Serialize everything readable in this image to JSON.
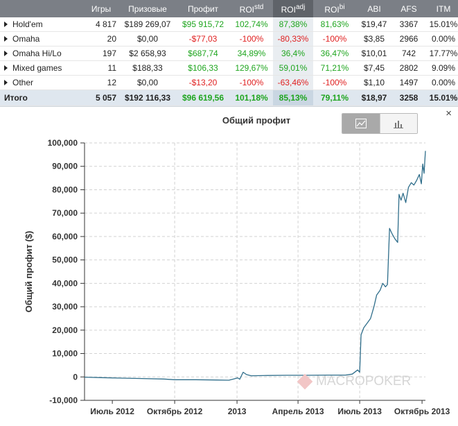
{
  "table": {
    "headers": [
      {
        "text": "",
        "sup": ""
      },
      {
        "text": "Игры",
        "sup": ""
      },
      {
        "text": "Призовые",
        "sup": ""
      },
      {
        "text": "Профит",
        "sup": ""
      },
      {
        "text": "ROI",
        "sup": "std"
      },
      {
        "text": "ROI",
        "sup": "adj"
      },
      {
        "text": "ROI",
        "sup": "bi"
      },
      {
        "text": "ABI",
        "sup": ""
      },
      {
        "text": "AFS",
        "sup": ""
      },
      {
        "text": "ITM",
        "sup": ""
      }
    ],
    "rows": [
      {
        "name": "Hold'em",
        "games": "4 817",
        "prize": "$189 269,07",
        "profit": "$95 915,72",
        "roi_std": "102,74%",
        "roi_adj": "87,38%",
        "roi_bi": "81,63%",
        "abi": "$19,47",
        "afs": "3367",
        "itm": "15.01%",
        "c": [
          "pos",
          "pos",
          "pos",
          "pos"
        ]
      },
      {
        "name": "Omaha",
        "games": "20",
        "prize": "$0,00",
        "profit": "-$77,03",
        "roi_std": "-100%",
        "roi_adj": "-80,33%",
        "roi_bi": "-100%",
        "abi": "$3,85",
        "afs": "2966",
        "itm": "0.00%",
        "c": [
          "neg",
          "neg",
          "neg",
          "neg"
        ]
      },
      {
        "name": "Omaha Hi/Lo",
        "games": "197",
        "prize": "$2 658,93",
        "profit": "$687,74",
        "roi_std": "34,89%",
        "roi_adj": "36,4%",
        "roi_bi": "36,47%",
        "abi": "$10,01",
        "afs": "742",
        "itm": "17.77%",
        "c": [
          "pos",
          "pos",
          "pos",
          "pos"
        ]
      },
      {
        "name": "Mixed games",
        "games": "11",
        "prize": "$188,33",
        "profit": "$106,33",
        "roi_std": "129,67%",
        "roi_adj": "59,01%",
        "roi_bi": "71,21%",
        "abi": "$7,45",
        "afs": "2802",
        "itm": "9.09%",
        "c": [
          "pos",
          "pos",
          "pos",
          "pos"
        ]
      },
      {
        "name": "Other",
        "games": "12",
        "prize": "$0,00",
        "profit": "-$13,20",
        "roi_std": "-100%",
        "roi_adj": "-63,46%",
        "roi_bi": "-100%",
        "abi": "$1,10",
        "afs": "1497",
        "itm": "0.00%",
        "c": [
          "neg",
          "neg",
          "neg",
          "neg"
        ]
      }
    ],
    "total": {
      "name": "Итого",
      "games": "5 057",
      "prize": "$192 116,33",
      "profit": "$96 619,56",
      "roi_std": "101,18%",
      "roi_adj": "85,13%",
      "roi_bi": "79,11%",
      "abi": "$18,97",
      "afs": "3258",
      "itm": "15.01%"
    }
  },
  "chart_panel": {
    "close_label": "×",
    "line_button_icon": "line-chart-icon",
    "bar_button_icon": "bar-chart-icon",
    "watermark": "MACROPOKER"
  },
  "colors": {
    "line": "#2e6d8a",
    "grid": "#d2d2d2",
    "positive": "#1ea51e",
    "negative": "#e02020"
  },
  "chart_data": {
    "type": "line",
    "title": "Общий профит",
    "xlabel": "",
    "ylabel": "Общий профит ($)",
    "ylim": [
      -10000,
      100000
    ],
    "yticks": [
      -10000,
      0,
      10000,
      20000,
      30000,
      40000,
      50000,
      60000,
      70000,
      80000,
      90000,
      100000
    ],
    "ytick_labels": [
      "-10,000",
      "0",
      "10,000",
      "20,000",
      "30,000",
      "40,000",
      "50,000",
      "60,000",
      "70,000",
      "80,000",
      "90,000",
      "100,000"
    ],
    "x_axis_type": "datetime",
    "xlim": [
      "2012-05-21",
      "2013-10-06"
    ],
    "xticks": [
      {
        "date": "2012-07-01",
        "label": "Июль 2012",
        "grid": false
      },
      {
        "date": "2012-10-01",
        "label": "Октябрь 2012",
        "grid": true
      },
      {
        "date": "2013-01-01",
        "label": "2013",
        "grid": true
      },
      {
        "date": "2013-04-01",
        "label": "Апрель 2013",
        "grid": true
      },
      {
        "date": "2013-07-01",
        "label": "Июль 2013",
        "grid": true
      },
      {
        "date": "2013-10-01",
        "label": "Октябрь 2013",
        "grid": false
      }
    ],
    "grid": true,
    "series": [
      {
        "points": [
          {
            "x": "2012-05-21",
            "y": -100
          },
          {
            "x": "2012-06-15",
            "y": -300
          },
          {
            "x": "2012-07-15",
            "y": -500
          },
          {
            "x": "2012-08-15",
            "y": -700
          },
          {
            "x": "2012-09-15",
            "y": -900
          },
          {
            "x": "2012-10-01",
            "y": -1200
          },
          {
            "x": "2012-11-01",
            "y": -1200
          },
          {
            "x": "2012-12-01",
            "y": -1300
          },
          {
            "x": "2012-12-20",
            "y": -1400
          },
          {
            "x": "2012-12-28",
            "y": -800
          },
          {
            "x": "2013-01-02",
            "y": -400
          },
          {
            "x": "2013-01-05",
            "y": -1000
          },
          {
            "x": "2013-01-10",
            "y": 2000
          },
          {
            "x": "2013-01-15",
            "y": 1000
          },
          {
            "x": "2013-01-22",
            "y": 500
          },
          {
            "x": "2013-02-15",
            "y": 600
          },
          {
            "x": "2013-03-15",
            "y": 700
          },
          {
            "x": "2013-04-15",
            "y": 700
          },
          {
            "x": "2013-05-15",
            "y": 800
          },
          {
            "x": "2013-06-10",
            "y": 800
          },
          {
            "x": "2013-06-20",
            "y": 1200
          },
          {
            "x": "2013-06-28",
            "y": 3000
          },
          {
            "x": "2013-07-01",
            "y": 2000
          },
          {
            "x": "2013-07-03",
            "y": 18000
          },
          {
            "x": "2013-07-07",
            "y": 21000
          },
          {
            "x": "2013-07-12",
            "y": 23000
          },
          {
            "x": "2013-07-17",
            "y": 25000
          },
          {
            "x": "2013-07-22",
            "y": 30000
          },
          {
            "x": "2013-07-26",
            "y": 35000
          },
          {
            "x": "2013-07-31",
            "y": 37000
          },
          {
            "x": "2013-08-04",
            "y": 40000
          },
          {
            "x": "2013-08-08",
            "y": 38500
          },
          {
            "x": "2013-08-11",
            "y": 39500
          },
          {
            "x": "2013-08-14",
            "y": 63500
          },
          {
            "x": "2013-08-18",
            "y": 61000
          },
          {
            "x": "2013-08-22",
            "y": 59000
          },
          {
            "x": "2013-08-26",
            "y": 57500
          },
          {
            "x": "2013-08-28",
            "y": 78000
          },
          {
            "x": "2013-08-31",
            "y": 75500
          },
          {
            "x": "2013-09-03",
            "y": 78500
          },
          {
            "x": "2013-09-07",
            "y": 74500
          },
          {
            "x": "2013-09-11",
            "y": 81000
          },
          {
            "x": "2013-09-15",
            "y": 83000
          },
          {
            "x": "2013-09-19",
            "y": 82000
          },
          {
            "x": "2013-09-23",
            "y": 84000
          },
          {
            "x": "2013-09-27",
            "y": 86500
          },
          {
            "x": "2013-09-30",
            "y": 82500
          },
          {
            "x": "2013-10-02",
            "y": 91000
          },
          {
            "x": "2013-10-04",
            "y": 87000
          },
          {
            "x": "2013-10-06",
            "y": 96600
          }
        ]
      }
    ]
  }
}
